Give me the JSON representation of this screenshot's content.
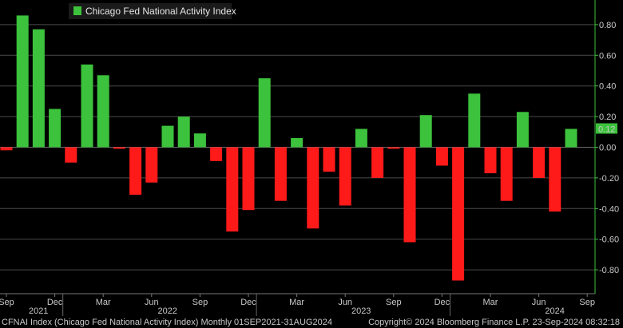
{
  "chart_data": {
    "type": "bar",
    "title": "",
    "legend": [
      "Chicago Fed National Activity Index"
    ],
    "legend_position": "top-left",
    "categories": [
      "Sep 2021",
      "Oct 2021",
      "Nov 2021",
      "Dec 2021",
      "Jan 2022",
      "Feb 2022",
      "Mar 2022",
      "Apr 2022",
      "May 2022",
      "Jun 2022",
      "Jul 2022",
      "Aug 2022",
      "Sep 2022",
      "Oct 2022",
      "Nov 2022",
      "Dec 2022",
      "Jan 2023",
      "Feb 2023",
      "Mar 2023",
      "Apr 2023",
      "May 2023",
      "Jun 2023",
      "Jul 2023",
      "Aug 2023",
      "Sep 2023",
      "Oct 2023",
      "Nov 2023",
      "Dec 2023",
      "Jan 2024",
      "Feb 2024",
      "Mar 2024",
      "Apr 2024",
      "May 2024",
      "Jun 2024",
      "Jul 2024",
      "Aug 2024"
    ],
    "values": [
      -0.02,
      0.86,
      0.77,
      0.25,
      -0.1,
      0.54,
      0.47,
      -0.01,
      -0.31,
      -0.23,
      0.14,
      0.2,
      0.09,
      -0.09,
      -0.55,
      -0.41,
      0.45,
      -0.35,
      0.06,
      -0.53,
      -0.16,
      -0.38,
      0.12,
      -0.2,
      -0.01,
      -0.62,
      0.21,
      -0.12,
      -0.87,
      0.35,
      -0.17,
      -0.35,
      0.23,
      -0.2,
      -0.42,
      0.12
    ],
    "positive_color": "#3cc23c",
    "negative_color": "#ff1a1a",
    "ylim": [
      -0.95,
      0.95
    ],
    "yticks": [
      0.8,
      0.6,
      0.4,
      0.2,
      0.0,
      -0.2,
      -0.4,
      -0.6,
      -0.8
    ],
    "ytick_labels": [
      "0.80",
      "0.60",
      "0.40",
      "0.20",
      "0.00",
      "-0.20",
      "-0.40",
      "-0.60",
      "-0.80"
    ],
    "xticks": [
      {
        "index": 0,
        "label": "Sep"
      },
      {
        "index": 3,
        "label": "Dec"
      },
      {
        "index": 6,
        "label": "Mar"
      },
      {
        "index": 9,
        "label": "Jun"
      },
      {
        "index": 12,
        "label": "Sep"
      },
      {
        "index": 15,
        "label": "Dec"
      },
      {
        "index": 18,
        "label": "Mar"
      },
      {
        "index": 21,
        "label": "Jun"
      },
      {
        "index": 24,
        "label": "Sep"
      },
      {
        "index": 27,
        "label": "Dec"
      },
      {
        "index": 30,
        "label": "Mar"
      },
      {
        "index": 33,
        "label": "Jun"
      },
      {
        "index": 36,
        "label": "Sep"
      }
    ],
    "year_labels": [
      {
        "index": 1,
        "label": "2021"
      },
      {
        "index": 9,
        "label": "2022"
      },
      {
        "index": 21,
        "label": "2023"
      },
      {
        "index": 33,
        "label": "2024"
      }
    ],
    "last_value_label": "0.12",
    "last_value_color": "#3cc23c",
    "grid": true
  },
  "footer": {
    "left": "CFNAI Index (Chicago Fed National Activity Index)  Monthly 01SEP2021-31AUG2024",
    "right": "Copyright© 2024 Bloomberg Finance L.P.     23-Sep-2024 08:32:18"
  }
}
